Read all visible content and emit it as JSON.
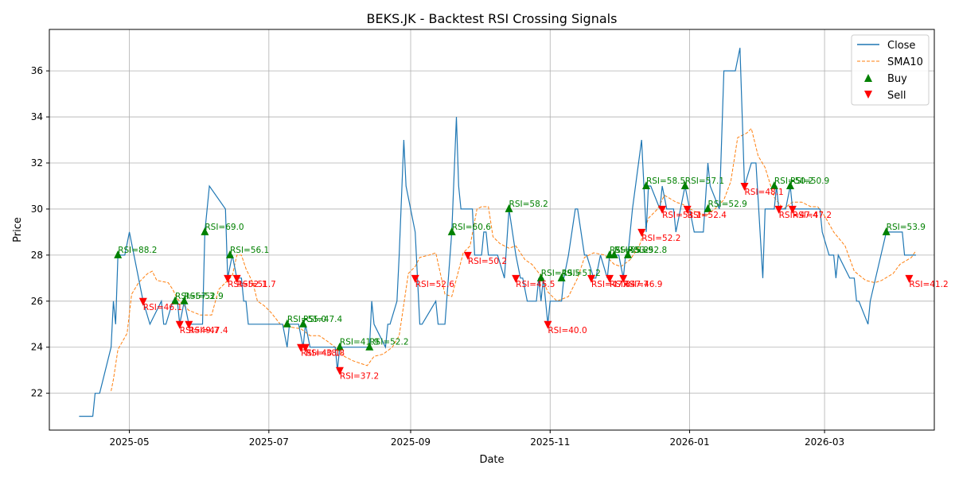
{
  "chart_data": {
    "type": "line",
    "title": "BEKS.JK - Backtest RSI Crossing Signals",
    "xlabel": "Date",
    "ylabel": "Price",
    "ylim": [
      20.4,
      37.8
    ],
    "xlim": [
      "2025-03-27",
      "2026-04-18"
    ],
    "grid": true,
    "legend_position": "top-right",
    "legend": [
      "Close",
      "SMA10",
      "Buy",
      "Sell"
    ],
    "x_ticks": [
      "2025-05-01",
      "2025-07-01",
      "2025-09-01",
      "2025-11-01",
      "2026-01-01",
      "2026-03-01"
    ],
    "x_tick_labels": [
      "2025-05",
      "2025-07",
      "2025-09",
      "2025-11",
      "2026-01",
      "2026-03"
    ],
    "y_ticks": [
      22,
      24,
      26,
      28,
      30,
      32,
      34,
      36
    ],
    "colors": {
      "close": "#1f77b4",
      "sma": "#ff7f0e",
      "buy": "#008000",
      "sell": "#ff0000"
    },
    "close": [
      [
        "2025-04-09",
        21
      ],
      [
        "2025-04-15",
        21
      ],
      [
        "2025-04-16",
        22
      ],
      [
        "2025-04-18",
        22
      ],
      [
        "2025-04-23",
        24
      ],
      [
        "2025-04-24",
        26
      ],
      [
        "2025-04-25",
        25
      ],
      [
        "2025-04-26",
        28
      ],
      [
        "2025-04-29",
        28
      ],
      [
        "2025-05-01",
        29
      ],
      [
        "2025-05-07",
        26
      ],
      [
        "2025-05-10",
        25
      ],
      [
        "2025-05-15",
        26
      ],
      [
        "2025-05-16",
        25
      ],
      [
        "2025-05-17",
        25
      ],
      [
        "2025-05-20",
        26
      ],
      [
        "2025-05-22",
        26
      ],
      [
        "2025-05-23",
        25
      ],
      [
        "2025-05-25",
        26
      ],
      [
        "2025-05-27",
        25
      ],
      [
        "2025-06-02",
        25
      ],
      [
        "2025-06-03",
        29
      ],
      [
        "2025-06-05",
        31
      ],
      [
        "2025-06-12",
        30
      ],
      [
        "2025-06-13",
        27
      ],
      [
        "2025-06-15",
        28
      ],
      [
        "2025-06-17",
        27
      ],
      [
        "2025-06-19",
        27
      ],
      [
        "2025-06-20",
        26
      ],
      [
        "2025-06-21",
        26
      ],
      [
        "2025-06-22",
        25
      ],
      [
        "2025-07-04",
        25
      ],
      [
        "2025-07-07",
        25
      ],
      [
        "2025-07-09",
        24
      ],
      [
        "2025-07-10",
        25
      ],
      [
        "2025-07-14",
        25
      ],
      [
        "2025-07-16",
        24
      ],
      [
        "2025-07-17",
        25
      ],
      [
        "2025-07-19",
        24
      ],
      [
        "2025-07-30",
        24
      ],
      [
        "2025-07-31",
        23
      ],
      [
        "2025-08-01",
        24
      ],
      [
        "2025-08-13",
        24
      ],
      [
        "2025-08-14",
        24
      ],
      [
        "2025-08-15",
        26
      ],
      [
        "2025-08-16",
        25
      ],
      [
        "2025-08-21",
        24
      ],
      [
        "2025-08-22",
        25
      ],
      [
        "2025-08-23",
        25
      ],
      [
        "2025-08-26",
        26
      ],
      [
        "2025-08-27",
        28
      ],
      [
        "2025-08-29",
        33
      ],
      [
        "2025-08-30",
        31
      ],
      [
        "2025-09-03",
        29
      ],
      [
        "2025-09-04",
        27
      ],
      [
        "2025-09-05",
        25
      ],
      [
        "2025-09-06",
        25
      ],
      [
        "2025-09-12",
        26
      ],
      [
        "2025-09-13",
        25
      ],
      [
        "2025-09-16",
        25
      ],
      [
        "2025-09-19",
        29
      ],
      [
        "2025-09-21",
        34
      ],
      [
        "2025-09-22",
        31
      ],
      [
        "2025-09-23",
        30
      ],
      [
        "2025-09-26",
        30
      ],
      [
        "2025-09-28",
        30
      ],
      [
        "2025-09-29",
        28
      ],
      [
        "2025-10-02",
        28
      ],
      [
        "2025-10-03",
        29
      ],
      [
        "2025-10-04",
        29
      ],
      [
        "2025-10-05",
        28
      ],
      [
        "2025-10-09",
        28
      ],
      [
        "2025-10-12",
        27
      ],
      [
        "2025-10-14",
        30
      ],
      [
        "2025-10-17",
        28
      ],
      [
        "2025-10-19",
        27
      ],
      [
        "2025-10-20",
        27
      ],
      [
        "2025-10-22",
        26
      ],
      [
        "2025-10-26",
        26
      ],
      [
        "2025-10-27",
        27
      ],
      [
        "2025-10-28",
        26
      ],
      [
        "2025-10-29",
        27
      ],
      [
        "2025-10-31",
        25
      ],
      [
        "2025-11-01",
        26
      ],
      [
        "2025-11-06",
        26
      ],
      [
        "2025-11-07",
        27
      ],
      [
        "2025-11-09",
        28
      ],
      [
        "2025-11-12",
        30
      ],
      [
        "2025-11-13",
        30
      ],
      [
        "2025-11-16",
        28
      ],
      [
        "2025-11-17",
        28
      ],
      [
        "2025-11-20",
        27
      ],
      [
        "2025-11-21",
        27
      ],
      [
        "2025-11-23",
        28
      ],
      [
        "2025-11-26",
        27
      ],
      [
        "2025-11-27",
        28
      ],
      [
        "2025-11-28",
        28
      ],
      [
        "2025-11-29",
        28
      ],
      [
        "2025-11-30",
        28
      ],
      [
        "2025-12-01",
        28
      ],
      [
        "2025-12-03",
        27
      ],
      [
        "2025-12-04",
        28
      ],
      [
        "2025-12-05",
        28
      ],
      [
        "2025-12-07",
        30
      ],
      [
        "2025-12-11",
        33
      ],
      [
        "2025-12-13",
        29
      ],
      [
        "2025-12-14",
        31
      ],
      [
        "2025-12-15",
        31
      ],
      [
        "2025-12-19",
        30
      ],
      [
        "2025-12-20",
        31
      ],
      [
        "2025-12-22",
        30
      ],
      [
        "2025-12-25",
        30
      ],
      [
        "2025-12-26",
        29
      ],
      [
        "2025-12-30",
        31
      ],
      [
        "2026-01-03",
        29
      ],
      [
        "2026-01-05",
        29
      ],
      [
        "2026-01-07",
        29
      ],
      [
        "2026-01-09",
        32
      ],
      [
        "2026-01-10",
        31
      ],
      [
        "2026-01-14",
        30
      ],
      [
        "2026-01-16",
        36
      ],
      [
        "2026-01-21",
        36
      ],
      [
        "2026-01-23",
        37
      ],
      [
        "2026-01-25",
        31
      ],
      [
        "2026-01-28",
        32
      ],
      [
        "2026-01-30",
        32
      ],
      [
        "2026-02-02",
        27
      ],
      [
        "2026-02-03",
        30
      ],
      [
        "2026-02-07",
        30
      ],
      [
        "2026-02-08",
        31
      ],
      [
        "2026-02-09",
        30
      ],
      [
        "2026-02-12",
        30
      ],
      [
        "2026-02-14",
        31
      ],
      [
        "2026-02-15",
        30
      ],
      [
        "2026-02-19",
        30
      ],
      [
        "2026-02-27",
        30
      ],
      [
        "2026-02-28",
        29
      ],
      [
        "2026-03-03",
        28
      ],
      [
        "2026-03-05",
        28
      ],
      [
        "2026-03-06",
        27
      ],
      [
        "2026-03-07",
        28
      ],
      [
        "2026-03-12",
        27
      ],
      [
        "2026-03-14",
        27
      ],
      [
        "2026-03-15",
        26
      ],
      [
        "2026-03-16",
        26
      ],
      [
        "2026-03-20",
        25
      ],
      [
        "2026-03-21",
        26
      ],
      [
        "2026-03-28",
        29
      ],
      [
        "2026-04-04",
        29
      ],
      [
        "2026-04-05",
        28
      ],
      [
        "2026-04-10",
        28
      ]
    ],
    "sma10": [
      [
        "2025-04-23",
        22.1
      ],
      [
        "2025-04-24",
        22.6
      ],
      [
        "2025-04-26",
        23.9
      ],
      [
        "2025-04-30",
        24.6
      ],
      [
        "2025-05-02",
        26.3
      ],
      [
        "2025-05-05",
        26.8
      ],
      [
        "2025-05-09",
        27.2
      ],
      [
        "2025-05-11",
        27.3
      ],
      [
        "2025-05-13",
        26.9
      ],
      [
        "2025-05-18",
        26.8
      ],
      [
        "2025-05-20",
        26.5
      ],
      [
        "2025-05-22",
        26.1
      ],
      [
        "2025-05-25",
        25.8
      ],
      [
        "2025-05-27",
        25.6
      ],
      [
        "2025-06-01",
        25.4
      ],
      [
        "2025-06-06",
        25.4
      ],
      [
        "2025-06-09",
        26.5
      ],
      [
        "2025-06-12",
        26.8
      ],
      [
        "2025-06-15",
        27.1
      ],
      [
        "2025-06-17",
        28.0
      ],
      [
        "2025-06-19",
        28.0
      ],
      [
        "2025-06-21",
        27.4
      ],
      [
        "2025-06-24",
        26.8
      ],
      [
        "2025-06-26",
        26.0
      ],
      [
        "2025-06-29",
        25.8
      ],
      [
        "2025-07-02",
        25.5
      ],
      [
        "2025-07-06",
        25.0
      ],
      [
        "2025-07-09",
        24.9
      ],
      [
        "2025-07-15",
        24.8
      ],
      [
        "2025-07-19",
        24.5
      ],
      [
        "2025-07-23",
        24.5
      ],
      [
        "2025-07-26",
        24.3
      ],
      [
        "2025-07-30",
        24.0
      ],
      [
        "2025-08-03",
        23.6
      ],
      [
        "2025-08-07",
        23.4
      ],
      [
        "2025-08-13",
        23.2
      ],
      [
        "2025-08-16",
        23.6
      ],
      [
        "2025-08-20",
        23.7
      ],
      [
        "2025-08-24",
        24.0
      ],
      [
        "2025-08-27",
        24.5
      ],
      [
        "2025-08-31",
        27.2
      ],
      [
        "2025-09-03",
        27.5
      ],
      [
        "2025-09-05",
        27.9
      ],
      [
        "2025-09-09",
        28.0
      ],
      [
        "2025-09-12",
        28.1
      ],
      [
        "2025-09-16",
        26.3
      ],
      [
        "2025-09-19",
        26.2
      ],
      [
        "2025-09-24",
        28.1
      ],
      [
        "2025-09-27",
        28.4
      ],
      [
        "2025-09-30",
        30.0
      ],
      [
        "2025-10-02",
        30.1
      ],
      [
        "2025-10-05",
        30.1
      ],
      [
        "2025-10-07",
        28.8
      ],
      [
        "2025-10-10",
        28.5
      ],
      [
        "2025-10-14",
        28.3
      ],
      [
        "2025-10-17",
        28.4
      ],
      [
        "2025-10-21",
        27.8
      ],
      [
        "2025-10-24",
        27.6
      ],
      [
        "2025-10-28",
        27.1
      ],
      [
        "2025-10-31",
        26.4
      ],
      [
        "2025-11-04",
        26.0
      ],
      [
        "2025-11-09",
        26.2
      ],
      [
        "2025-11-13",
        27.0
      ],
      [
        "2025-11-16",
        27.9
      ],
      [
        "2025-11-20",
        28.1
      ],
      [
        "2025-11-25",
        28.0
      ],
      [
        "2025-11-29",
        27.6
      ],
      [
        "2025-12-02",
        27.5
      ],
      [
        "2025-12-06",
        27.8
      ],
      [
        "2025-12-10",
        28.4
      ],
      [
        "2025-12-14",
        29.6
      ],
      [
        "2025-12-18",
        30.0
      ],
      [
        "2025-12-21",
        30.6
      ],
      [
        "2025-12-26",
        30.3
      ],
      [
        "2025-12-29",
        30.2
      ],
      [
        "2026-01-03",
        29.9
      ],
      [
        "2026-01-08",
        29.7
      ],
      [
        "2026-01-12",
        30.0
      ],
      [
        "2026-01-16",
        30.4
      ],
      [
        "2026-01-19",
        31.2
      ],
      [
        "2026-01-22",
        33.1
      ],
      [
        "2026-01-26",
        33.3
      ],
      [
        "2026-01-28",
        33.5
      ],
      [
        "2026-01-31",
        32.3
      ],
      [
        "2026-02-03",
        31.8
      ],
      [
        "2026-02-07",
        30.5
      ],
      [
        "2026-02-11",
        30.0
      ],
      [
        "2026-02-15",
        30.3
      ],
      [
        "2026-02-19",
        30.3
      ],
      [
        "2026-02-23",
        30.1
      ],
      [
        "2026-02-26",
        30.1
      ],
      [
        "2026-03-01",
        29.7
      ],
      [
        "2026-03-05",
        29.0
      ],
      [
        "2026-03-10",
        28.4
      ],
      [
        "2026-03-14",
        27.3
      ],
      [
        "2026-03-19",
        26.9
      ],
      [
        "2026-03-23",
        26.8
      ],
      [
        "2026-03-26",
        26.9
      ],
      [
        "2026-03-31",
        27.2
      ],
      [
        "2026-04-03",
        27.6
      ],
      [
        "2026-04-08",
        27.9
      ],
      [
        "2026-04-10",
        28.2
      ]
    ],
    "buy_signals": [
      {
        "date": "2025-04-26",
        "price": 28,
        "label": "RSI=88.2"
      },
      {
        "date": "2025-05-21",
        "price": 26,
        "label": "RSI=57.3"
      },
      {
        "date": "2025-05-25",
        "price": 26,
        "label": "RSI=52.9"
      },
      {
        "date": "2025-06-03",
        "price": 29,
        "label": "RSI=69.0"
      },
      {
        "date": "2025-06-14",
        "price": 28,
        "label": "RSI=56.1"
      },
      {
        "date": "2025-07-09",
        "price": 25,
        "label": "RSI=55.0"
      },
      {
        "date": "2025-07-16",
        "price": 25,
        "label": "RSI=47.4"
      },
      {
        "date": "2025-08-01",
        "price": 24,
        "label": "RSI=41.9"
      },
      {
        "date": "2025-08-14",
        "price": 24,
        "label": "RSI=52.2"
      },
      {
        "date": "2025-09-19",
        "price": 29,
        "label": "RSI=60.6"
      },
      {
        "date": "2025-10-14",
        "price": 30,
        "label": "RSI=58.2"
      },
      {
        "date": "2025-10-28",
        "price": 27,
        "label": "RSI=49.5"
      },
      {
        "date": "2025-11-06",
        "price": 27,
        "label": "RSI=51.2"
      },
      {
        "date": "2025-11-27",
        "price": 28,
        "label": "RSI=55.2"
      },
      {
        "date": "2025-11-29",
        "price": 28,
        "label": "RSI=53.9"
      },
      {
        "date": "2025-12-05",
        "price": 28,
        "label": "RSI=52.8"
      },
      {
        "date": "2025-12-13",
        "price": 31,
        "label": "RSI=58.5"
      },
      {
        "date": "2025-12-30",
        "price": 31,
        "label": "RSI=57.1"
      },
      {
        "date": "2026-01-09",
        "price": 30,
        "label": "RSI=52.9"
      },
      {
        "date": "2026-02-07",
        "price": 31,
        "label": "RSI=50.2"
      },
      {
        "date": "2026-02-14",
        "price": 31,
        "label": "RSI=50.9"
      },
      {
        "date": "2026-03-28",
        "price": 29,
        "label": "RSI=53.9"
      }
    ],
    "sell_signals": [
      {
        "date": "2025-05-07",
        "price": 26,
        "label": "RSI=46.1"
      },
      {
        "date": "2025-05-23",
        "price": 25,
        "label": "RSI=49.7"
      },
      {
        "date": "2025-05-27",
        "price": 25,
        "label": "RSI=47.4"
      },
      {
        "date": "2025-06-13",
        "price": 27,
        "label": "RSI=52.1"
      },
      {
        "date": "2025-06-17",
        "price": 27,
        "label": "RSI=51.7"
      },
      {
        "date": "2025-07-15",
        "price": 24,
        "label": "RSI=40.1"
      },
      {
        "date": "2025-07-17",
        "price": 24,
        "label": "RSI=38.8"
      },
      {
        "date": "2025-08-01",
        "price": 23,
        "label": "RSI=37.2"
      },
      {
        "date": "2025-09-03",
        "price": 27,
        "label": "RSI=52.6"
      },
      {
        "date": "2025-09-26",
        "price": 28,
        "label": "RSI=50.2"
      },
      {
        "date": "2025-10-17",
        "price": 27,
        "label": "RSI=45.5"
      },
      {
        "date": "2025-10-31",
        "price": 25,
        "label": "RSI=40.0"
      },
      {
        "date": "2025-11-19",
        "price": 27,
        "label": "RSI=47.8"
      },
      {
        "date": "2025-11-27",
        "price": 27,
        "label": "RSI=47.7"
      },
      {
        "date": "2025-12-03",
        "price": 27,
        "label": "RSI=46.9"
      },
      {
        "date": "2025-12-11",
        "price": 29,
        "label": "RSI=52.2"
      },
      {
        "date": "2025-12-20",
        "price": 30,
        "label": "RSI=53.1"
      },
      {
        "date": "2025-12-31",
        "price": 30,
        "label": "RSI=52.4"
      },
      {
        "date": "2026-01-25",
        "price": 31,
        "label": "RSI=48.1"
      },
      {
        "date": "2026-02-09",
        "price": 30,
        "label": "RSI=47.4"
      },
      {
        "date": "2026-02-15",
        "price": 30,
        "label": "RSI=47.2"
      },
      {
        "date": "2026-04-07",
        "price": 27,
        "label": "RSI=41.2"
      }
    ]
  }
}
